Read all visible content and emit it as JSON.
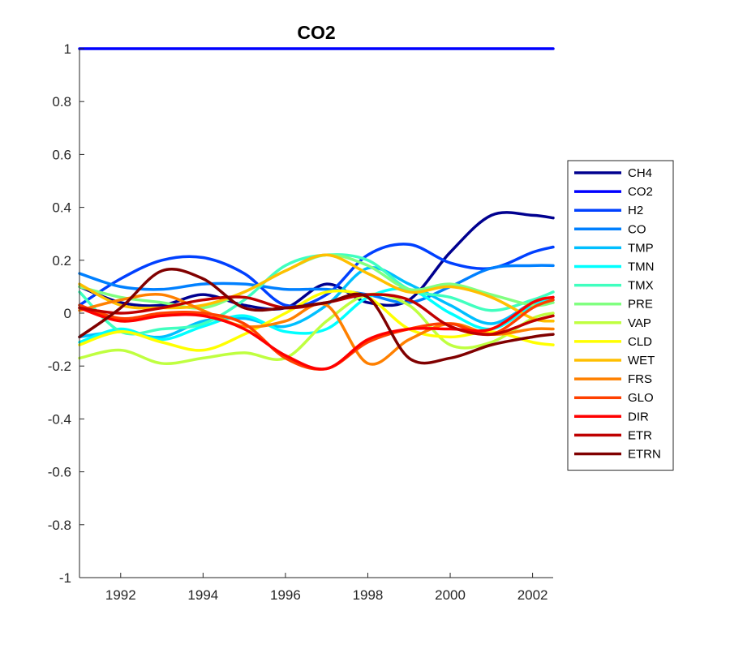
{
  "chart_data": {
    "type": "line",
    "title": "CO2",
    "xlabel": "",
    "ylabel": "",
    "xlim": [
      1991.0,
      2002.5
    ],
    "ylim": [
      -1,
      1
    ],
    "xticks": [
      1992,
      1994,
      1996,
      1998,
      2000,
      2002
    ],
    "yticks": [
      1,
      0.8,
      0.6,
      0.4,
      0.2,
      0,
      -0.2,
      -0.4,
      -0.6,
      -0.8,
      -1
    ],
    "legend_position": "right",
    "x": [
      1991.0,
      1992.0,
      1993.0,
      1994.0,
      1995.0,
      1996.0,
      1997.0,
      1998.0,
      1999.0,
      2000.0,
      2001.0,
      2002.0,
      2002.5
    ],
    "series": [
      {
        "name": "CH4",
        "color": "#00008f",
        "values": [
          0.1,
          0.04,
          0.03,
          0.07,
          0.03,
          0.02,
          0.11,
          0.04,
          0.05,
          0.23,
          0.37,
          0.37,
          0.36
        ]
      },
      {
        "name": "CO2",
        "color": "#0000ff",
        "values": [
          1,
          1,
          1,
          1,
          1,
          1,
          1,
          1,
          1,
          1,
          1,
          1,
          1
        ]
      },
      {
        "name": "H2",
        "color": "#0040ff",
        "values": [
          0.03,
          0.13,
          0.2,
          0.21,
          0.15,
          0.03,
          0.07,
          0.22,
          0.26,
          0.19,
          0.17,
          0.23,
          0.25
        ]
      },
      {
        "name": "CO",
        "color": "#0080ff",
        "values": [
          0.15,
          0.1,
          0.09,
          0.11,
          0.11,
          0.09,
          0.09,
          0.07,
          0.04,
          0.1,
          0.17,
          0.18,
          0.18
        ]
      },
      {
        "name": "TMP",
        "color": "#00bfff",
        "values": [
          -0.09,
          -0.07,
          -0.09,
          -0.03,
          -0.02,
          -0.05,
          0.03,
          0.17,
          0.11,
          0.03,
          -0.04,
          0.04,
          0.06
        ]
      },
      {
        "name": "TMN",
        "color": "#00ffff",
        "values": [
          -0.11,
          -0.06,
          -0.1,
          -0.05,
          -0.01,
          -0.07,
          -0.06,
          0.06,
          0.09,
          0.0,
          -0.06,
          0.03,
          0.05
        ]
      },
      {
        "name": "TMX",
        "color": "#40ffbf",
        "values": [
          0.08,
          -0.07,
          -0.06,
          -0.04,
          0.05,
          0.18,
          0.22,
          0.2,
          0.09,
          0.06,
          0.01,
          0.05,
          0.08
        ]
      },
      {
        "name": "PRE",
        "color": "#80ff80",
        "values": [
          0.1,
          0.06,
          0.04,
          0.02,
          0.08,
          0.16,
          0.22,
          0.18,
          0.09,
          0.11,
          0.07,
          0.03,
          0.04
        ]
      },
      {
        "name": "VAP",
        "color": "#bfff40",
        "values": [
          -0.17,
          -0.14,
          -0.19,
          -0.17,
          -0.15,
          -0.17,
          -0.03,
          0.07,
          0.03,
          -0.12,
          -0.11,
          -0.02,
          0.0
        ]
      },
      {
        "name": "CLD",
        "color": "#ffff00",
        "values": [
          -0.12,
          -0.07,
          -0.11,
          -0.14,
          -0.08,
          0.0,
          0.08,
          0.06,
          -0.06,
          -0.09,
          -0.07,
          -0.11,
          -0.12
        ]
      },
      {
        "name": "WET",
        "color": "#ffbf00",
        "values": [
          0.11,
          0.03,
          0.02,
          0.03,
          0.08,
          0.16,
          0.22,
          0.15,
          0.08,
          0.1,
          0.06,
          -0.02,
          -0.03
        ]
      },
      {
        "name": "FRS",
        "color": "#ff8000",
        "values": [
          0.01,
          0.05,
          0.07,
          0.01,
          -0.05,
          -0.03,
          0.03,
          -0.19,
          -0.1,
          -0.04,
          -0.08,
          -0.06,
          -0.06
        ]
      },
      {
        "name": "GLO",
        "color": "#ff4000",
        "values": [
          0.03,
          -0.02,
          0.0,
          0.0,
          -0.04,
          -0.17,
          -0.21,
          -0.11,
          -0.06,
          -0.04,
          -0.08,
          0.02,
          0.05
        ]
      },
      {
        "name": "DIR",
        "color": "#ff0000",
        "values": [
          0.02,
          -0.03,
          -0.01,
          -0.01,
          -0.06,
          -0.16,
          -0.21,
          -0.1,
          -0.06,
          -0.06,
          -0.06,
          0.04,
          0.06
        ]
      },
      {
        "name": "ETR",
        "color": "#bf0000",
        "values": [
          0.02,
          0.0,
          0.02,
          0.05,
          0.06,
          0.02,
          0.04,
          0.07,
          0.05,
          -0.05,
          -0.08,
          -0.03,
          -0.01
        ]
      },
      {
        "name": "ETRN",
        "color": "#800000",
        "values": [
          -0.09,
          0.02,
          0.16,
          0.13,
          0.02,
          0.02,
          0.04,
          0.06,
          -0.17,
          -0.17,
          -0.12,
          -0.09,
          -0.08
        ]
      }
    ]
  }
}
